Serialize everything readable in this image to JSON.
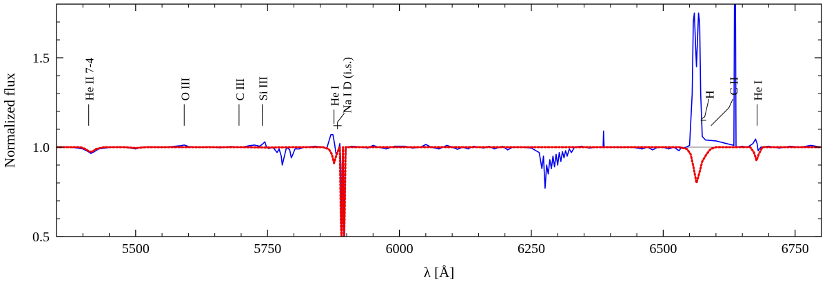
{
  "chart_data": {
    "type": "line",
    "title": "",
    "xlabel": "λ [Å]",
    "ylabel": "Normalized flux",
    "xlim": [
      5350,
      6800
    ],
    "ylim": [
      0.5,
      1.8
    ],
    "x_ticks": [
      5500,
      5750,
      6000,
      6250,
      6500,
      6750
    ],
    "x_tick_labels": [
      "5500",
      "5750",
      "6000",
      "6250",
      "6500",
      "6750"
    ],
    "y_ticks": [
      0.5,
      1.0,
      1.5
    ],
    "y_tick_labels": [
      "0.5",
      "1.0",
      "1.5"
    ],
    "grid": false,
    "legend": "none",
    "series": [
      {
        "style": "solid",
        "color": "#0000ee",
        "points": [
          [
            5350,
            1.0
          ],
          [
            5370,
            1.002
          ],
          [
            5390,
            0.995
          ],
          [
            5400,
            0.99
          ],
          [
            5410,
            0.975
          ],
          [
            5415,
            0.965
          ],
          [
            5420,
            0.972
          ],
          [
            5430,
            0.99
          ],
          [
            5450,
            0.998
          ],
          [
            5470,
            1.002
          ],
          [
            5490,
            0.995
          ],
          [
            5500,
            0.99
          ],
          [
            5510,
            1.0
          ],
          [
            5530,
            1.002
          ],
          [
            5550,
            0.998
          ],
          [
            5570,
            1.004
          ],
          [
            5585,
            1.008
          ],
          [
            5592,
            1.012
          ],
          [
            5600,
            1.004
          ],
          [
            5620,
            0.998
          ],
          [
            5640,
            1.002
          ],
          [
            5660,
            0.996
          ],
          [
            5680,
            1.004
          ],
          [
            5700,
            0.998
          ],
          [
            5715,
            1.008
          ],
          [
            5725,
            1.012
          ],
          [
            5735,
            1.005
          ],
          [
            5740,
            1.016
          ],
          [
            5745,
            1.03
          ],
          [
            5748,
            1.0
          ],
          [
            5752,
            0.992
          ],
          [
            5760,
            1.0
          ],
          [
            5768,
            0.97
          ],
          [
            5772,
            0.99
          ],
          [
            5776,
            0.95
          ],
          [
            5778,
            0.9
          ],
          [
            5782,
            0.95
          ],
          [
            5786,
            1.0
          ],
          [
            5792,
            0.985
          ],
          [
            5795,
            0.94
          ],
          [
            5798,
            0.96
          ],
          [
            5802,
            0.99
          ],
          [
            5810,
            0.99
          ],
          [
            5820,
            1.0
          ],
          [
            5840,
            1.005
          ],
          [
            5855,
            1.0
          ],
          [
            5862,
            0.99
          ],
          [
            5866,
            1.03
          ],
          [
            5870,
            1.07
          ],
          [
            5874,
            1.07
          ],
          [
            5877,
            1.02
          ],
          [
            5880,
            0.96
          ],
          [
            5884,
            0.98
          ],
          [
            5887,
            1.02
          ],
          [
            5889,
            0.9
          ],
          [
            5890,
            0.5
          ],
          [
            5891,
            0.5
          ],
          [
            5892,
            0.9
          ],
          [
            5893,
            1.0
          ],
          [
            5894,
            0.8
          ],
          [
            5895,
            0.5
          ],
          [
            5896,
            0.5
          ],
          [
            5897,
            0.85
          ],
          [
            5899,
            1.0
          ],
          [
            5910,
            1.005
          ],
          [
            5925,
            1.002
          ],
          [
            5940,
            0.995
          ],
          [
            5950,
            1.01
          ],
          [
            5960,
            1.0
          ],
          [
            5975,
            0.99
          ],
          [
            5990,
            1.005
          ],
          [
            6010,
            1.005
          ],
          [
            6025,
            0.995
          ],
          [
            6040,
            1.0
          ],
          [
            6050,
            1.015
          ],
          [
            6060,
            1.0
          ],
          [
            6075,
            0.99
          ],
          [
            6090,
            1.01
          ],
          [
            6100,
            1.0
          ],
          [
            6110,
            0.988
          ],
          [
            6120,
            1.0
          ],
          [
            6130,
            0.99
          ],
          [
            6140,
            1.005
          ],
          [
            6150,
            1.0
          ],
          [
            6160,
            0.995
          ],
          [
            6170,
            1.005
          ],
          [
            6180,
            0.99
          ],
          [
            6195,
            1.005
          ],
          [
            6205,
            0.985
          ],
          [
            6215,
            1.0
          ],
          [
            6230,
            1.0
          ],
          [
            6250,
            0.995
          ],
          [
            6265,
            0.97
          ],
          [
            6270,
            0.88
          ],
          [
            6273,
            0.95
          ],
          [
            6276,
            0.77
          ],
          [
            6279,
            0.9
          ],
          [
            6282,
            0.85
          ],
          [
            6285,
            0.93
          ],
          [
            6288,
            0.88
          ],
          [
            6291,
            0.95
          ],
          [
            6294,
            0.89
          ],
          [
            6297,
            0.96
          ],
          [
            6300,
            0.9
          ],
          [
            6303,
            0.97
          ],
          [
            6306,
            0.92
          ],
          [
            6309,
            0.975
          ],
          [
            6312,
            0.94
          ],
          [
            6315,
            0.98
          ],
          [
            6318,
            0.95
          ],
          [
            6322,
            0.99
          ],
          [
            6326,
            0.97
          ],
          [
            6332,
            1.0
          ],
          [
            6345,
            1.005
          ],
          [
            6360,
            0.995
          ],
          [
            6375,
            1.0
          ],
          [
            6386,
            1.0
          ],
          [
            6387,
            1.09
          ],
          [
            6388,
            1.0
          ],
          [
            6400,
            1.0
          ],
          [
            6420,
            0.998
          ],
          [
            6440,
            1.0
          ],
          [
            6460,
            0.99
          ],
          [
            6470,
            1.0
          ],
          [
            6480,
            0.985
          ],
          [
            6490,
            1.0
          ],
          [
            6500,
            1.0
          ],
          [
            6510,
            0.99
          ],
          [
            6520,
            1.0
          ],
          [
            6530,
            0.98
          ],
          [
            6535,
            1.0
          ],
          [
            6540,
            0.995
          ],
          [
            6550,
            1.01
          ],
          [
            6555,
            1.3
          ],
          [
            6557,
            1.7
          ],
          [
            6559,
            1.75
          ],
          [
            6561,
            1.6
          ],
          [
            6563,
            1.45
          ],
          [
            6565,
            1.6
          ],
          [
            6567,
            1.75
          ],
          [
            6569,
            1.7
          ],
          [
            6571,
            1.3
          ],
          [
            6574,
            1.06
          ],
          [
            6580,
            1.04
          ],
          [
            6600,
            1.035
          ],
          [
            6620,
            1.02
          ],
          [
            6634,
            1.01
          ],
          [
            6635,
            1.8
          ],
          [
            6637,
            1.8
          ],
          [
            6638,
            1.0
          ],
          [
            6650,
            1.005
          ],
          [
            6660,
            1.0
          ],
          [
            6670,
            1.02
          ],
          [
            6675,
            1.045
          ],
          [
            6678,
            1.02
          ],
          [
            6680,
            0.98
          ],
          [
            6685,
            1.0
          ],
          [
            6700,
            1.005
          ],
          [
            6720,
            0.995
          ],
          [
            6740,
            1.005
          ],
          [
            6760,
            1.0
          ],
          [
            6780,
            1.01
          ],
          [
            6800,
            1.0
          ]
        ]
      },
      {
        "style": "dotted",
        "color": "#ee0000",
        "points": [
          [
            5350,
            1.0
          ],
          [
            5395,
            1.0
          ],
          [
            5405,
            0.99
          ],
          [
            5412,
            0.975
          ],
          [
            5418,
            0.975
          ],
          [
            5425,
            0.99
          ],
          [
            5440,
            1.0
          ],
          [
            5480,
            1.0
          ],
          [
            5500,
            0.995
          ],
          [
            5520,
            1.0
          ],
          [
            5700,
            1.0
          ],
          [
            5750,
            0.998
          ],
          [
            5800,
            1.0
          ],
          [
            5855,
            1.0
          ],
          [
            5866,
            0.99
          ],
          [
            5872,
            0.96
          ],
          [
            5876,
            0.91
          ],
          [
            5880,
            0.95
          ],
          [
            5885,
            0.99
          ],
          [
            5887,
            1.0
          ],
          [
            5889,
            0.6
          ],
          [
            5890,
            0.5
          ],
          [
            5891,
            0.6
          ],
          [
            5893,
            1.0
          ],
          [
            5894,
            0.6
          ],
          [
            5895,
            0.5
          ],
          [
            5896,
            0.6
          ],
          [
            5898,
            1.0
          ],
          [
            6000,
            1.0
          ],
          [
            6500,
            1.0
          ],
          [
            6530,
            1.0
          ],
          [
            6545,
            0.99
          ],
          [
            6552,
            0.96
          ],
          [
            6558,
            0.88
          ],
          [
            6563,
            0.8
          ],
          [
            6568,
            0.85
          ],
          [
            6574,
            0.92
          ],
          [
            6582,
            0.96
          ],
          [
            6590,
            0.99
          ],
          [
            6600,
            1.0
          ],
          [
            6665,
            1.0
          ],
          [
            6672,
            0.97
          ],
          [
            6677,
            0.925
          ],
          [
            6681,
            0.96
          ],
          [
            6688,
            1.0
          ],
          [
            6800,
            1.0
          ]
        ]
      }
    ],
    "reference_line": {
      "y": 1.0,
      "x_from": 6540,
      "x_to": 6640,
      "color": "#777777"
    },
    "line_labels": [
      {
        "text": "He II 7-4",
        "x": 5411
      },
      {
        "text": "O III",
        "x": 5592
      },
      {
        "text": "C III",
        "x": 5696
      },
      {
        "text": "Si III",
        "x": 5740
      },
      {
        "text": "He I",
        "x": 5876
      },
      {
        "text": "Na I D (i.s.)",
        "x": 5893
      },
      {
        "text": "H",
        "x": 6563
      },
      {
        "text": "C II",
        "x": 6580
      },
      {
        "text": "He I",
        "x": 6678
      }
    ]
  }
}
